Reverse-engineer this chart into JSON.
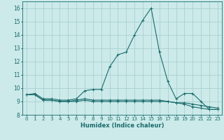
{
  "xlabel": "Humidex (Indice chaleur)",
  "background_color": "#cceaea",
  "grid_color": "#aacfcf",
  "line_color": "#1a6b6b",
  "xlim": [
    -0.5,
    23.5
  ],
  "ylim": [
    8.0,
    16.5
  ],
  "yticks": [
    8,
    9,
    10,
    11,
    12,
    13,
    14,
    15,
    16
  ],
  "xticks": [
    0,
    1,
    2,
    3,
    4,
    5,
    6,
    7,
    8,
    9,
    10,
    11,
    12,
    13,
    14,
    15,
    16,
    17,
    18,
    19,
    20,
    21,
    22,
    23
  ],
  "series": [
    {
      "x": [
        0,
        1,
        2,
        3,
        4,
        5,
        6,
        7,
        8,
        9,
        10,
        11,
        12,
        13,
        14,
        15,
        16,
        17,
        18,
        19,
        20,
        21,
        22,
        23
      ],
      "y": [
        9.5,
        9.6,
        9.2,
        9.2,
        9.1,
        9.1,
        9.2,
        9.8,
        9.9,
        9.9,
        11.6,
        12.5,
        12.7,
        14.0,
        15.1,
        16.0,
        12.7,
        10.5,
        9.2,
        9.6,
        9.6,
        9.0,
        8.4,
        8.4
      ]
    },
    {
      "x": [
        0,
        1,
        2,
        3,
        4,
        5,
        6,
        7,
        8,
        9,
        10,
        11,
        12,
        13,
        14,
        15,
        16,
        17,
        18,
        19,
        20,
        21,
        22,
        23
      ],
      "y": [
        9.5,
        9.5,
        9.1,
        9.1,
        9.0,
        9.0,
        9.0,
        9.1,
        9.0,
        9.0,
        9.0,
        9.0,
        9.0,
        9.0,
        9.0,
        9.0,
        9.0,
        9.0,
        8.9,
        8.8,
        8.6,
        8.5,
        8.4,
        8.4
      ]
    },
    {
      "x": [
        0,
        1,
        2,
        3,
        4,
        5,
        6,
        7,
        8,
        9,
        10,
        11,
        12,
        13,
        14,
        15,
        16,
        17,
        18,
        19,
        20,
        21,
        22,
        23
      ],
      "y": [
        9.5,
        9.5,
        9.1,
        9.1,
        9.0,
        9.0,
        9.1,
        9.2,
        9.1,
        9.1,
        9.1,
        9.1,
        9.1,
        9.1,
        9.1,
        9.1,
        9.1,
        9.0,
        8.9,
        8.9,
        8.8,
        8.7,
        8.6,
        8.5
      ]
    }
  ]
}
